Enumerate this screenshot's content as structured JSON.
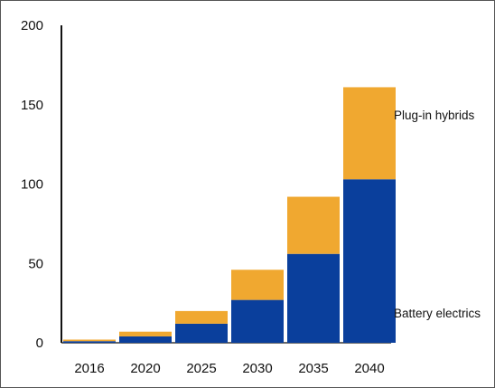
{
  "chart_data": {
    "type": "bar",
    "stacked": true,
    "categories": [
      "2016",
      "2020",
      "2025",
      "2030",
      "2035",
      "2040"
    ],
    "series": [
      {
        "name": "Battery electrics",
        "color": "#0a3f9c",
        "values": [
          1,
          4,
          12,
          27,
          56,
          103
        ]
      },
      {
        "name": "Plug-in hybrids",
        "color": "#f0a830",
        "values": [
          1,
          3,
          8,
          19,
          36,
          58
        ]
      }
    ],
    "ylim": [
      0,
      200
    ],
    "yticks": [
      0,
      50,
      100,
      150,
      200
    ],
    "xlabel": "",
    "ylabel": "",
    "title": "",
    "grid": false,
    "legend": "right, labels beside stack segments"
  }
}
